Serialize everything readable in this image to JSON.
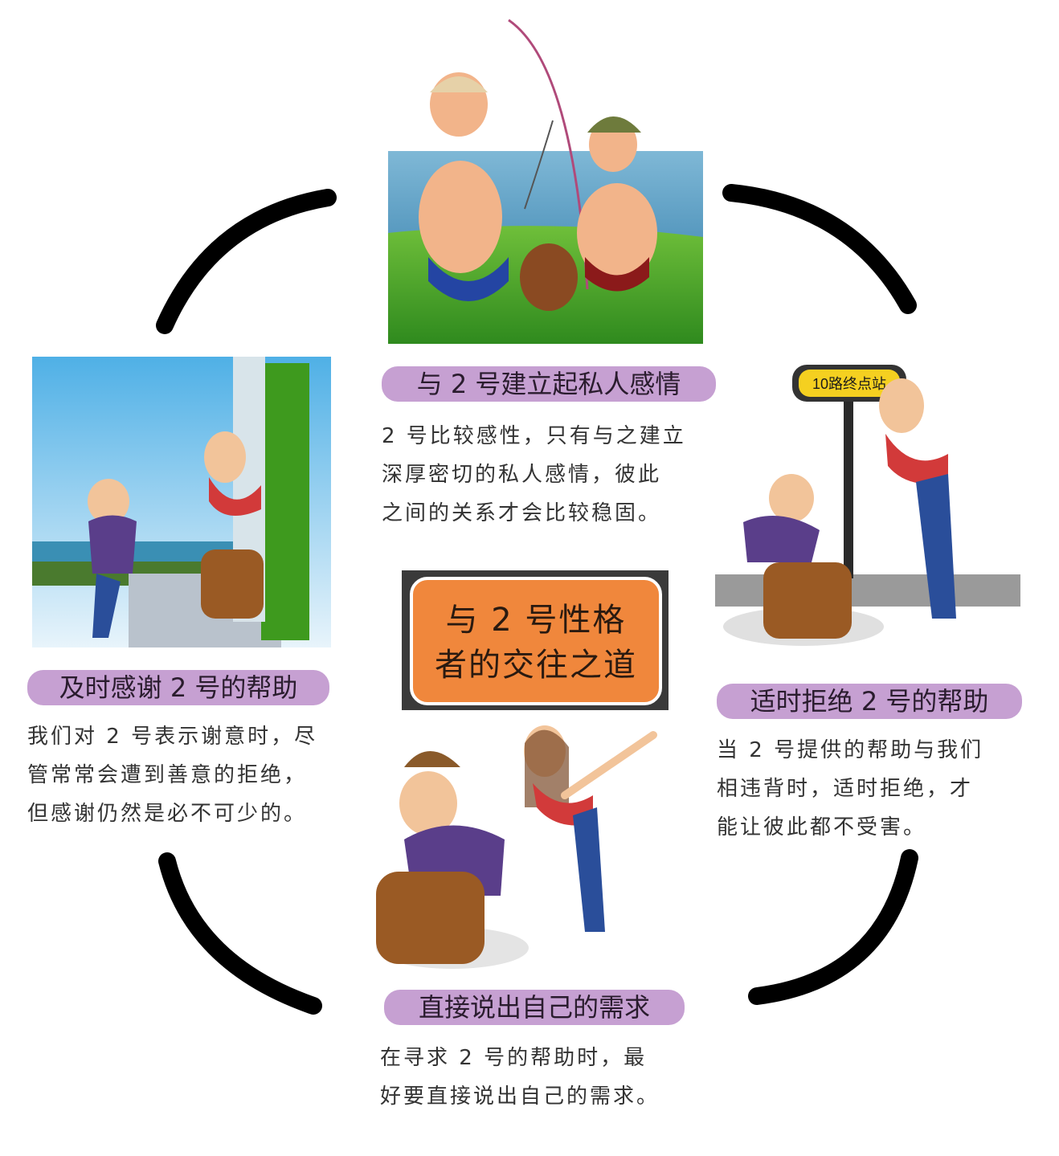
{
  "center": {
    "title": "与 2 号性格\n者的交往之道"
  },
  "sections": {
    "top": {
      "label": "与 2 号建立起私人感情",
      "desc": "2 号比较感性，只有与之建立\n深厚密切的私人感情，彼此\n之间的关系才会比较稳固。"
    },
    "left": {
      "label": "及时感谢 2 号的帮助",
      "desc": "我们对 2 号表示谢意时，尽\n管常常会遭到善意的拒绝，\n但感谢仍然是必不可少的。"
    },
    "right": {
      "label": "适时拒绝 2 号的帮助",
      "desc": "当 2 号提供的帮助与我们\n相违背时，适时拒绝，才\n能让彼此都不受害。"
    },
    "bottom": {
      "label": "直接说出自己的需求",
      "desc": "在寻求 2 号的帮助时，最\n好要直接说出自己的需求。"
    }
  },
  "sign": {
    "text": "10路终点站"
  },
  "colors": {
    "label_bg": "#c6a0d2",
    "center_bg": "#f0873c",
    "arc": "#000000",
    "text": "#333333"
  }
}
